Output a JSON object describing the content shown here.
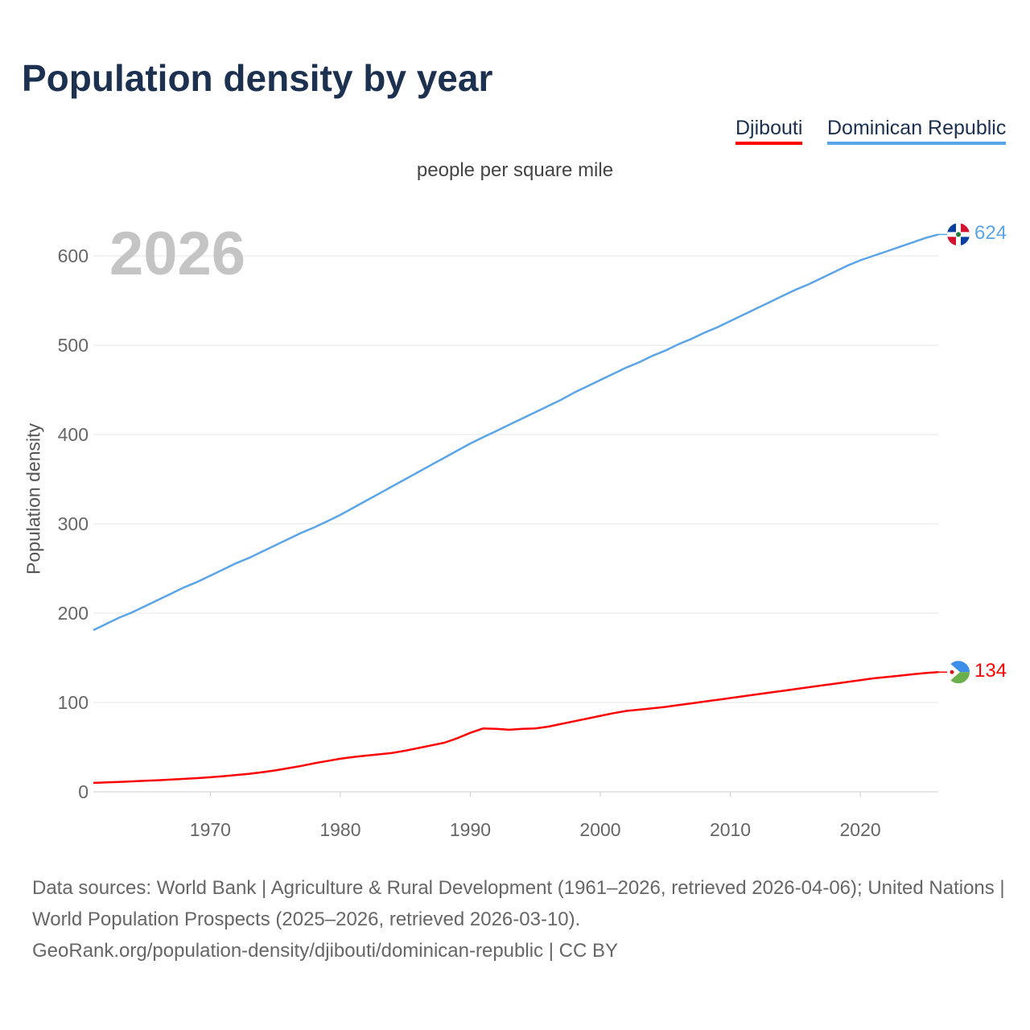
{
  "title": "Population density by year",
  "legend": [
    {
      "name": "Djibouti",
      "color": "#ff0000"
    },
    {
      "name": "Dominican Republic",
      "color": "#5aa5e8"
    }
  ],
  "year_display": "2026",
  "chart_data": {
    "type": "line",
    "title": "Population density by year",
    "subtitle": "people per square mile",
    "ylabel": "Population density",
    "xlabel": "",
    "xlim": [
      1961,
      2026
    ],
    "ylim": [
      0,
      600
    ],
    "xticks": [
      1970,
      1980,
      1990,
      2000,
      2010,
      2020
    ],
    "yticks": [
      0,
      100,
      200,
      300,
      400,
      500,
      600
    ],
    "grid": true,
    "legend_position": "top-right",
    "x_start": 1961,
    "series": [
      {
        "name": "Djibouti",
        "color": "#ff0000",
        "end_label": "134",
        "values": [
          10,
          10.5,
          11,
          11.7,
          12.3,
          13,
          13.7,
          14.5,
          15.3,
          16.3,
          17.5,
          18.8,
          20.2,
          22,
          24,
          26.5,
          29,
          32,
          34.5,
          37,
          39,
          40.5,
          42,
          43.5,
          46,
          49,
          52,
          55,
          60,
          66,
          71,
          70.5,
          69.5,
          70.5,
          71,
          73,
          76,
          79,
          82,
          85,
          88,
          90.5,
          92,
          93.5,
          95,
          97,
          99,
          101,
          103,
          105,
          107,
          109,
          111,
          113,
          115,
          117,
          119,
          121,
          123,
          125,
          127,
          128.5,
          130,
          131.5,
          133,
          134
        ]
      },
      {
        "name": "Dominican Republic",
        "color": "#5aa5e8",
        "end_label": "624",
        "values": [
          181,
          188,
          195,
          201,
          208,
          215,
          222,
          229,
          235,
          242,
          249,
          256,
          262,
          269,
          276,
          283,
          290,
          296,
          303,
          310,
          318,
          326,
          334,
          342,
          350,
          358,
          366,
          374,
          382,
          390,
          397,
          404,
          411,
          418,
          425,
          432,
          439,
          447,
          454,
          461,
          468,
          475,
          481,
          488,
          494,
          501,
          507,
          514,
          520,
          527,
          534,
          541,
          548,
          555,
          562,
          568,
          575,
          582,
          589,
          595,
          600,
          605,
          610,
          615,
          620,
          624
        ]
      }
    ]
  },
  "footer": {
    "line1": "Data sources: World Bank | Agriculture & Rural Development (1961–2026, retrieved 2026-04-06); United Nations | World Population Prospects (2025–2026, retrieved 2026-03-10).",
    "line2": "GeoRank.org/population-density/djibouti/dominican-republic | CC BY"
  }
}
